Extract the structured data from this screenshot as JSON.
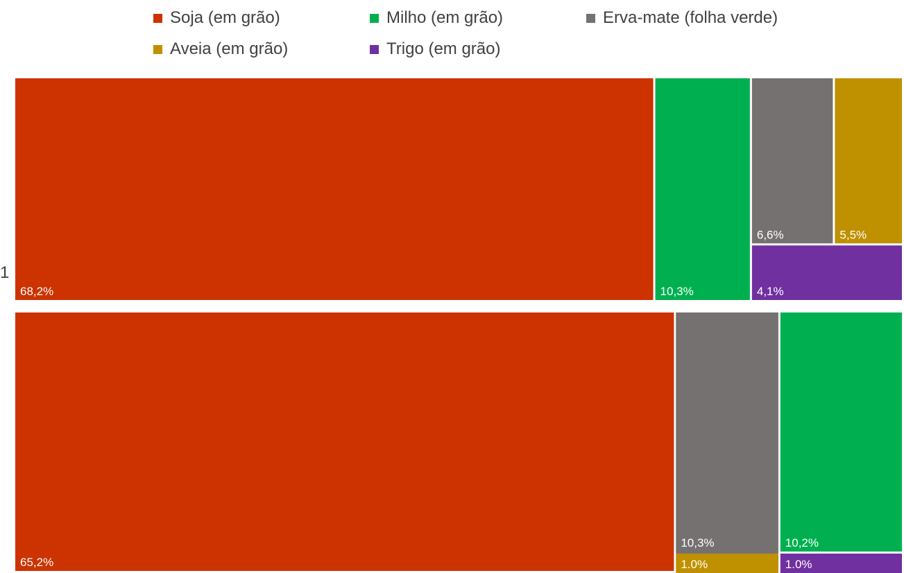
{
  "legend": [
    {
      "label": "Soja (em grão)",
      "color": "#CC3300"
    },
    {
      "label": "Milho (em grão)",
      "color": "#00B050"
    },
    {
      "label": "Erva-mate (folha verde)",
      "color": "#767171"
    },
    {
      "label": "Aveia (em grão)",
      "color": "#BF9000"
    },
    {
      "label": "Trigo (em grão)",
      "color": "#7030A0"
    }
  ],
  "stray_label": "1",
  "chart_data": {
    "type": "treemap",
    "groups": [
      {
        "name": "",
        "items": [
          {
            "category": "Soja (em grão)",
            "label": "68,2%",
            "value": 68.2
          },
          {
            "category": "Milho (em grão)",
            "label": "10,3%",
            "value": 10.3
          },
          {
            "category": "Erva-mate (folha verde)",
            "label": "6,6%",
            "value": 6.6
          },
          {
            "category": "Aveia (em grão)",
            "label": "5,5%",
            "value": 5.5
          },
          {
            "category": "Trigo (em grão)",
            "label": "4,1%",
            "value": 4.1
          }
        ]
      },
      {
        "name": "",
        "items": [
          {
            "category": "Soja (em grão)",
            "label": "65,2%",
            "value": 65.2
          },
          {
            "category": "Erva-mate (folha verde)",
            "label": "10,3%",
            "value": 10.3
          },
          {
            "category": "Milho (em grão)",
            "label": "10,2%",
            "value": 10.2
          },
          {
            "category": "Aveia (em grão)",
            "label": "1.0%",
            "value": 1.0
          },
          {
            "category": "Trigo (em grão)",
            "label": "1.0%",
            "value": 1.0
          }
        ]
      }
    ]
  }
}
